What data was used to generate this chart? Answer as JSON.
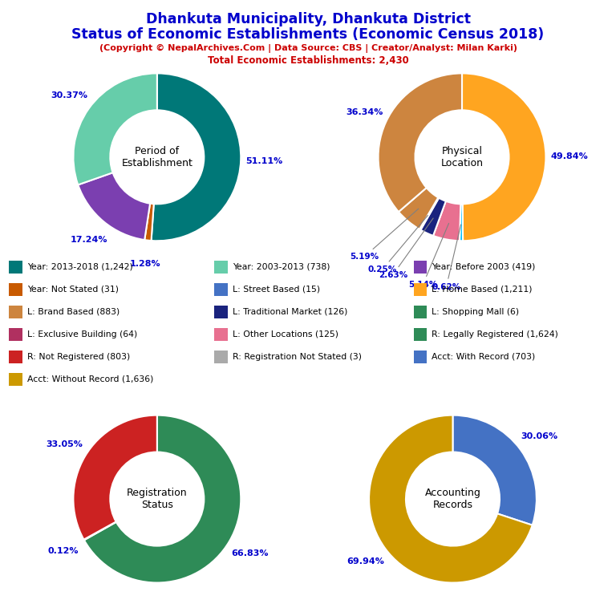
{
  "title_line1": "Dhankuta Municipality, Dhankuta District",
  "title_line2": "Status of Economic Establishments (Economic Census 2018)",
  "subtitle_line1": "(Copyright © NepalArchives.Com | Data Source: CBS | Creator/Analyst: Milan Karki)",
  "subtitle_line2": "Total Economic Establishments: 2,430",
  "title_color": "#0000CC",
  "subtitle_color": "#CC0000",
  "chart1": {
    "label": "Period of\nEstablishment",
    "slices": [
      51.11,
      1.28,
      17.24,
      30.37
    ],
    "colors": [
      "#007878",
      "#C85A00",
      "#7B3FB0",
      "#66CDAA"
    ],
    "pct_labels": [
      "51.11%",
      "1.28%",
      "17.24%",
      "30.37%"
    ],
    "label_angles": [
      90,
      0,
      0,
      270
    ]
  },
  "chart2": {
    "label": "Physical\nLocation",
    "slices": [
      49.84,
      0.62,
      5.14,
      2.63,
      0.25,
      5.19,
      36.34
    ],
    "colors": [
      "#FFA520",
      "#00BFFF",
      "#E87090",
      "#1A237E",
      "#2E8B57",
      "#CD853F",
      "#CD853F"
    ],
    "pct_labels": [
      "49.84%",
      "0.62%",
      "5.14%",
      "2.63%",
      "0.25%",
      "5.19%",
      "36.34%"
    ],
    "label_angles": [
      90,
      0,
      0,
      0,
      0,
      0,
      270
    ]
  },
  "chart3": {
    "label": "Registration\nStatus",
    "slices": [
      66.83,
      0.12,
      33.05
    ],
    "colors": [
      "#2E8B57",
      "#5599CC",
      "#CC2222"
    ],
    "pct_labels": [
      "66.83%",
      "0.12%",
      "33.05%"
    ],
    "label_angles": [
      90,
      0,
      270
    ]
  },
  "chart4": {
    "label": "Accounting\nRecords",
    "slices": [
      30.06,
      69.94
    ],
    "colors": [
      "#4472C4",
      "#CC9900"
    ],
    "pct_labels": [
      "30.06%",
      "69.94%"
    ],
    "label_angles": [
      90,
      270
    ]
  },
  "legend_col1": [
    {
      "label": "Year: 2013-2018 (1,242)",
      "color": "#007878"
    },
    {
      "label": "Year: Not Stated (31)",
      "color": "#C85A00"
    },
    {
      "label": "L: Brand Based (883)",
      "color": "#CD853F"
    },
    {
      "label": "L: Exclusive Building (64)",
      "color": "#B03060"
    },
    {
      "label": "R: Not Registered (803)",
      "color": "#CC2222"
    },
    {
      "label": "Acct: Without Record (1,636)",
      "color": "#CC9900"
    }
  ],
  "legend_col2": [
    {
      "label": "Year: 2003-2013 (738)",
      "color": "#66CDAA"
    },
    {
      "label": "L: Street Based (15)",
      "color": "#4472C4"
    },
    {
      "label": "L: Traditional Market (126)",
      "color": "#1A237E"
    },
    {
      "label": "L: Other Locations (125)",
      "color": "#E87090"
    },
    {
      "label": "R: Registration Not Stated (3)",
      "color": "#AAAAAA"
    }
  ],
  "legend_col3": [
    {
      "label": "Year: Before 2003 (419)",
      "color": "#7B3FB0"
    },
    {
      "label": "L: Home Based (1,211)",
      "color": "#FFA520"
    },
    {
      "label": "L: Shopping Mall (6)",
      "color": "#2E8B57"
    },
    {
      "label": "R: Legally Registered (1,624)",
      "color": "#2E8B57"
    },
    {
      "label": "Acct: With Record (703)",
      "color": "#4472C4"
    }
  ]
}
